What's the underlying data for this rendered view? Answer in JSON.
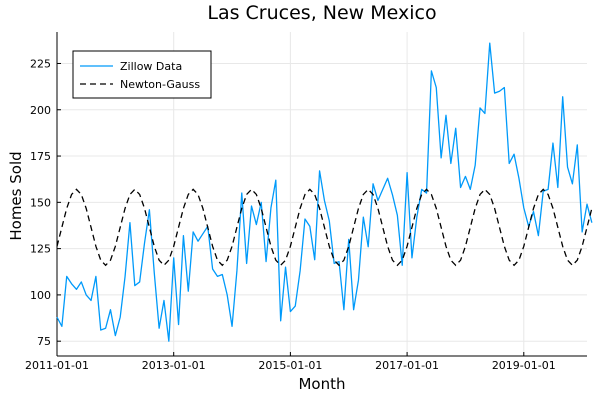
{
  "chart_data": {
    "type": "line",
    "title": "Las Cruces, New Mexico",
    "xlabel": "Month",
    "ylabel": "Homes Sold",
    "x_start": "2011-01",
    "xlim": [
      "2011-01",
      "2020-02"
    ],
    "ylim": [
      67,
      242
    ],
    "x_ticks": [
      "2011-01-01",
      "2013-01-01",
      "2015-01-01",
      "2017-01-01",
      "2019-01-01"
    ],
    "y_ticks": [
      75,
      100,
      125,
      150,
      175,
      200,
      225
    ],
    "grid": true,
    "legend_position": "top-left",
    "series": [
      {
        "name": "Zillow Data",
        "color": "#009AFA",
        "style": "solid",
        "values": [
          88,
          83,
          110,
          106,
          103,
          107,
          100,
          97,
          110,
          81,
          82,
          92,
          78,
          88,
          110,
          139,
          105,
          107,
          128,
          146,
          112,
          82,
          97,
          75,
          120,
          84,
          132,
          102,
          134,
          129,
          133,
          137,
          114,
          110,
          111,
          100,
          83,
          113,
          155,
          117,
          148,
          138,
          150,
          118,
          147,
          162,
          86,
          115,
          91,
          94,
          113,
          141,
          137,
          119,
          167,
          151,
          140,
          117,
          118,
          92,
          130,
          92,
          108,
          142,
          126,
          160,
          151,
          157,
          163,
          154,
          143,
          116,
          166,
          120,
          142,
          157,
          155,
          221,
          212,
          174,
          197,
          171,
          190,
          158,
          164,
          157,
          170,
          201,
          198,
          236,
          209,
          210,
          212,
          171,
          176,
          163,
          147,
          137,
          145,
          132,
          156,
          157,
          182,
          158,
          207,
          169,
          160,
          181,
          134,
          149,
          139
        ]
      },
      {
        "name": "Newton-Gauss",
        "color": "#000000",
        "style": "dashed",
        "model": {
          "mean": 136.5,
          "amplitude": 20.5,
          "period_months": 12,
          "peak_month_index": 4
        },
        "n_points": 111
      }
    ]
  }
}
